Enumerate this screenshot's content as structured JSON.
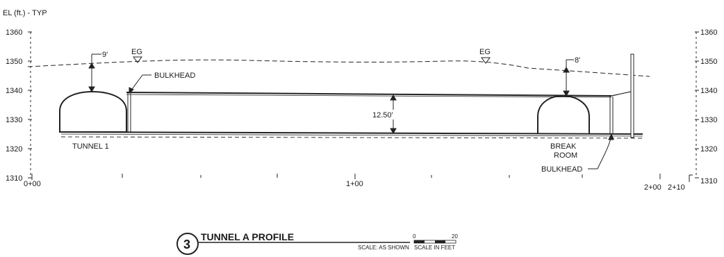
{
  "header": {
    "axis_label": "EL (ft.) - TYP"
  },
  "elevations": [
    "1360",
    "1350",
    "1340",
    "1330",
    "1320",
    "1310"
  ],
  "stations": {
    "start": "0+00",
    "mid": "1+00",
    "end_a": "2+00",
    "end_b": "2+10"
  },
  "annotations": {
    "eg_left": "EG",
    "eg_right": "EG",
    "bulkhead_top": "BULKHEAD",
    "bulkhead_bottom": "BULKHEAD",
    "cover_left": "9'",
    "cover_right": "8'",
    "height": "12.50'",
    "tunnel1": "TUNNEL 1",
    "break_room_1": "BREAK",
    "break_room_2": "ROOM"
  },
  "title_block": {
    "number": "3",
    "title": "TUNNEL A PROFILE",
    "scale_text": "SCALE: AS SHOWN",
    "scale_bar_start": "0",
    "scale_bar_end": "20",
    "scale_units": "SCALE IN FEET"
  }
}
